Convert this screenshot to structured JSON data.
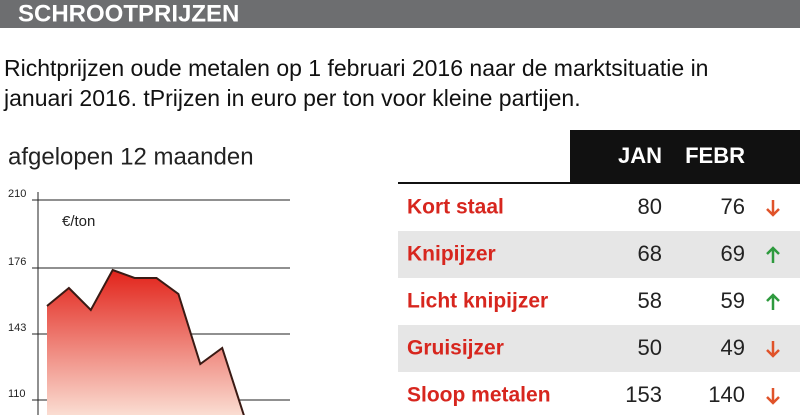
{
  "header": {
    "title": "SCHROOTPRIJZEN",
    "subtitle_lines": [
      "Richtprijzen oude metalen op 1 februari 2016 naar de marktsituatie in",
      "januari 2016. tPrijzen in euro per ton voor kleine partijen."
    ]
  },
  "chart_data": {
    "type": "area",
    "title": "afgelopen 12 maanden",
    "unit_label": "€/ton",
    "values": [
      157,
      166,
      155,
      175,
      171,
      171,
      163,
      128,
      136,
      102
    ],
    "ylim": [
      100,
      210
    ],
    "yticks": [
      110,
      143,
      176,
      210
    ],
    "grid": true,
    "color": "#e2231a"
  },
  "table": {
    "columns": [
      "JAN",
      "FEBR"
    ],
    "rows": [
      [
        "Kort staal",
        80,
        76
      ],
      [
        "Knipijzer",
        68,
        69
      ],
      [
        "Licht knipijzer",
        58,
        59
      ],
      [
        "Gruisijzer",
        50,
        49
      ],
      [
        "Sloop metalen",
        153,
        140
      ]
    ]
  }
}
